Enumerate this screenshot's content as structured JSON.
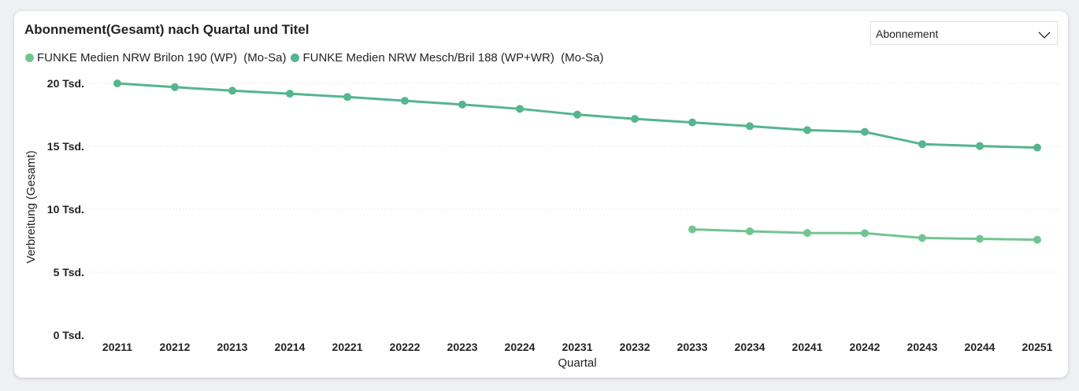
{
  "colors": {
    "series1": "#72c591",
    "series2": "#55b58f",
    "grid": "#d9d9d9",
    "text": "#252423"
  },
  "slicer": {
    "selected": "Abonnement",
    "icon": "chevron-down-icon"
  },
  "chart_data": {
    "type": "line",
    "title": "Abonnement(Gesamt) nach Quartal und Titel",
    "xlabel": "Quartal",
    "ylabel": "Verbreitung (Gesamt)",
    "legend_position": "top-left",
    "grid": true,
    "ylim": [
      0,
      20000
    ],
    "yticks": [
      {
        "value": 0,
        "label": "0 Tsd."
      },
      {
        "value": 5000,
        "label": "5 Tsd."
      },
      {
        "value": 10000,
        "label": "10 Tsd."
      },
      {
        "value": 15000,
        "label": "15 Tsd."
      },
      {
        "value": 20000,
        "label": "20 Tsd."
      }
    ],
    "categories": [
      "20211",
      "20212",
      "20213",
      "20214",
      "20221",
      "20222",
      "20223",
      "20224",
      "20231",
      "20232",
      "20233",
      "20234",
      "20241",
      "20242",
      "20243",
      "20244",
      "20251"
    ],
    "series": [
      {
        "name": "FUNKE Medien NRW Brilon 190 (WP)  (Mo-Sa)",
        "values": [
          null,
          null,
          null,
          null,
          null,
          null,
          null,
          null,
          null,
          null,
          8400,
          8250,
          8120,
          8100,
          7720,
          7650,
          7580
        ]
      },
      {
        "name": "FUNKE Medien NRW Mesch/Bril 188 (WP+WR)  (Mo-Sa)",
        "values": [
          20000,
          19700,
          19420,
          19180,
          18920,
          18620,
          18320,
          17980,
          17520,
          17180,
          16900,
          16600,
          16290,
          16150,
          15170,
          15020,
          14900
        ]
      }
    ]
  }
}
